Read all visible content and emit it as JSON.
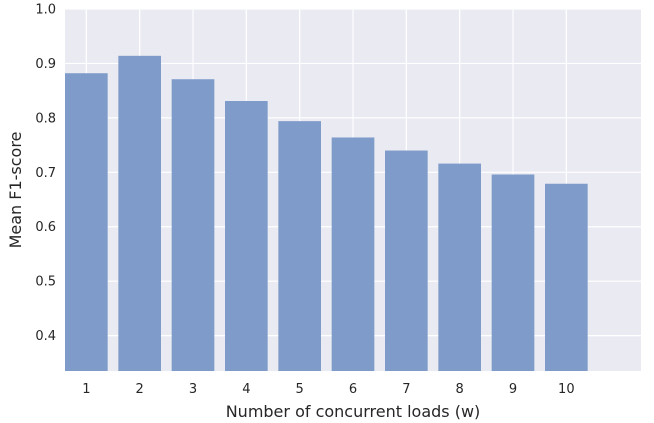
{
  "chart_data": {
    "type": "bar",
    "title": "",
    "xlabel": "Number of concurrent loads (w)",
    "ylabel": "Mean F1-score",
    "categories": [
      "1",
      "2",
      "3",
      "4",
      "5",
      "6",
      "7",
      "8",
      "9",
      "10"
    ],
    "values": [
      0.882,
      0.914,
      0.871,
      0.831,
      0.794,
      0.764,
      0.74,
      0.716,
      0.696,
      0.679
    ],
    "ylim": [
      0.335,
      1.0
    ],
    "yticks": [
      "0.4",
      "0.5",
      "0.6",
      "0.7",
      "0.8",
      "0.9",
      "1.0"
    ],
    "grid": true,
    "legend": "none",
    "colors": {
      "background": "#eaeaf2",
      "grid": "#ffffff",
      "bar": "#7f9bc9"
    }
  }
}
